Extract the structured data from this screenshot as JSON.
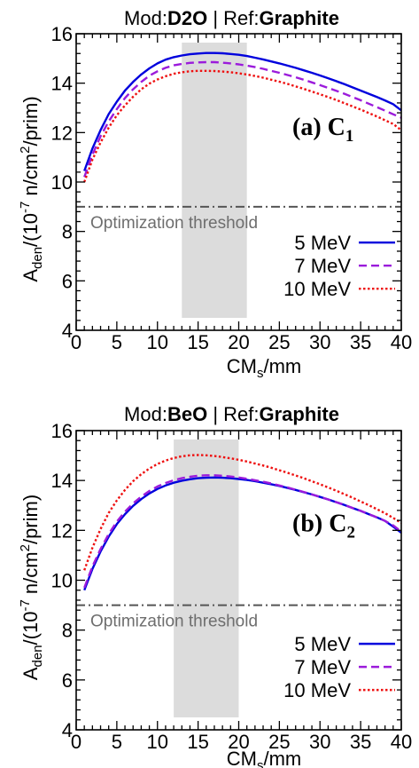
{
  "chart_data": [
    {
      "type": "line",
      "title": {
        "pre": "Mod:",
        "mod": "D2O",
        "sep": " | Ref:",
        "ref": "Graphite"
      },
      "panel_label": {
        "main": "(a) C",
        "sub": "1"
      },
      "xlabel": {
        "main": "CM",
        "sub": "s",
        "post": "/mm"
      },
      "ylabel": {
        "pre": "A",
        "sub": "den",
        "mid": "/(10",
        "sup1": "-7",
        "mid2": " n/cm",
        "sup2": "2",
        "post": "/prim)"
      },
      "xlim": [
        0,
        40
      ],
      "ylim": [
        4,
        16
      ],
      "xticks": [
        "0",
        "5",
        "10",
        "15",
        "20",
        "25",
        "30",
        "35",
        "40"
      ],
      "yticks": [
        "4",
        "6",
        "8",
        "10",
        "12",
        "14",
        "16"
      ],
      "shaded_band": [
        13,
        21
      ],
      "threshold": {
        "y": 9,
        "label": "Optimization threshold"
      },
      "legend_position": "right",
      "x": [
        1,
        2,
        3,
        4,
        5,
        6,
        7,
        8,
        9,
        10,
        11,
        12,
        13,
        14,
        15,
        16,
        17,
        18,
        19,
        20,
        21,
        22,
        23,
        24,
        25,
        26,
        27,
        28,
        29,
        30,
        31,
        32,
        33,
        34,
        35,
        36,
        37,
        38,
        39,
        40
      ],
      "series": [
        {
          "name": "5 MeV",
          "color": "#0000dd",
          "dash": "solid",
          "values": [
            10.45,
            11.35,
            12.1,
            12.75,
            13.25,
            13.7,
            14.05,
            14.35,
            14.6,
            14.8,
            14.95,
            15.05,
            15.12,
            15.17,
            15.2,
            15.22,
            15.22,
            15.21,
            15.18,
            15.15,
            15.1,
            15.03,
            14.96,
            14.88,
            14.8,
            14.71,
            14.62,
            14.52,
            14.42,
            14.31,
            14.2,
            14.08,
            13.96,
            13.83,
            13.7,
            13.57,
            13.44,
            13.3,
            13.15,
            12.9
          ]
        },
        {
          "name": "7 MeV",
          "color": "#9b1bdb",
          "dash": "dashed",
          "values": [
            10.2,
            11.1,
            11.85,
            12.45,
            12.95,
            13.4,
            13.75,
            14.05,
            14.3,
            14.48,
            14.62,
            14.72,
            14.78,
            14.82,
            14.84,
            14.85,
            14.85,
            14.83,
            14.8,
            14.76,
            14.71,
            14.65,
            14.58,
            14.5,
            14.42,
            14.33,
            14.24,
            14.14,
            14.03,
            13.92,
            13.81,
            13.69,
            13.57,
            13.44,
            13.31,
            13.17,
            13.03,
            12.89,
            12.74,
            12.6
          ]
        },
        {
          "name": "10 MeV",
          "color": "#ee1111",
          "dash": "dotted",
          "values": [
            10.0,
            10.9,
            11.6,
            12.2,
            12.7,
            13.1,
            13.45,
            13.75,
            13.98,
            14.15,
            14.28,
            14.38,
            14.44,
            14.48,
            14.5,
            14.5,
            14.49,
            14.47,
            14.44,
            14.4,
            14.35,
            14.29,
            14.22,
            14.14,
            14.06,
            13.97,
            13.87,
            13.77,
            13.66,
            13.55,
            13.44,
            13.32,
            13.19,
            13.06,
            12.93,
            12.79,
            12.65,
            12.5,
            12.35,
            12.1
          ]
        }
      ]
    },
    {
      "type": "line",
      "title": {
        "pre": "Mod:",
        "mod": "BeO",
        "sep": " | Ref:",
        "ref": "Graphite"
      },
      "panel_label": {
        "main": "(b) C",
        "sub": "2"
      },
      "xlabel": {
        "main": "CM",
        "sub": "s",
        "post": "/mm"
      },
      "ylabel": {
        "pre": "A",
        "sub": "den",
        "mid": "/(10",
        "sup1": "-7",
        "mid2": " n/cm",
        "sup2": "2",
        "post": "/prim)"
      },
      "xlim": [
        0,
        40
      ],
      "ylim": [
        4,
        16
      ],
      "xticks": [
        "0",
        "5",
        "10",
        "15",
        "20",
        "25",
        "30",
        "35",
        "40"
      ],
      "yticks": [
        "4",
        "6",
        "8",
        "10",
        "12",
        "14",
        "16"
      ],
      "shaded_band": [
        12,
        20
      ],
      "threshold": {
        "y": 9,
        "label": "Optimization threshold"
      },
      "legend_position": "right",
      "x": [
        1,
        2,
        3,
        4,
        5,
        6,
        7,
        8,
        9,
        10,
        11,
        12,
        13,
        14,
        15,
        16,
        17,
        18,
        19,
        20,
        21,
        22,
        23,
        24,
        25,
        26,
        27,
        28,
        29,
        30,
        31,
        32,
        33,
        34,
        35,
        36,
        37,
        38,
        39,
        40
      ],
      "series": [
        {
          "name": "5 MeV",
          "color": "#0000dd",
          "dash": "solid",
          "values": [
            9.6,
            10.45,
            11.15,
            11.75,
            12.25,
            12.65,
            12.98,
            13.25,
            13.48,
            13.66,
            13.8,
            13.91,
            13.99,
            14.05,
            14.09,
            14.11,
            14.12,
            14.11,
            14.09,
            14.06,
            14.02,
            13.97,
            13.91,
            13.85,
            13.78,
            13.7,
            13.62,
            13.53,
            13.44,
            13.34,
            13.24,
            13.13,
            13.02,
            12.9,
            12.78,
            12.65,
            12.52,
            12.38,
            12.15,
            11.9
          ]
        },
        {
          "name": "7 MeV",
          "color": "#9b1bdb",
          "dash": "dashed",
          "values": [
            9.7,
            10.55,
            11.25,
            11.85,
            12.35,
            12.75,
            13.08,
            13.35,
            13.58,
            13.76,
            13.9,
            14.01,
            14.09,
            14.15,
            14.19,
            14.21,
            14.21,
            14.19,
            14.16,
            14.12,
            14.07,
            14.01,
            13.95,
            13.88,
            13.8,
            13.72,
            13.63,
            13.54,
            13.44,
            13.34,
            13.24,
            13.13,
            13.02,
            12.9,
            12.78,
            12.65,
            12.52,
            12.38,
            12.2,
            11.95
          ]
        },
        {
          "name": "10 MeV",
          "color": "#ee1111",
          "dash": "dotted",
          "values": [
            10.4,
            11.3,
            12.05,
            12.7,
            13.2,
            13.62,
            13.97,
            14.25,
            14.48,
            14.66,
            14.8,
            14.9,
            14.97,
            15.01,
            15.02,
            15.01,
            14.98,
            14.94,
            14.89,
            14.83,
            14.76,
            14.68,
            14.6,
            14.51,
            14.41,
            14.31,
            14.2,
            14.09,
            13.97,
            13.85,
            13.72,
            13.59,
            13.45,
            13.31,
            13.16,
            13.01,
            12.85,
            12.69,
            12.5,
            12.3
          ]
        }
      ]
    }
  ]
}
